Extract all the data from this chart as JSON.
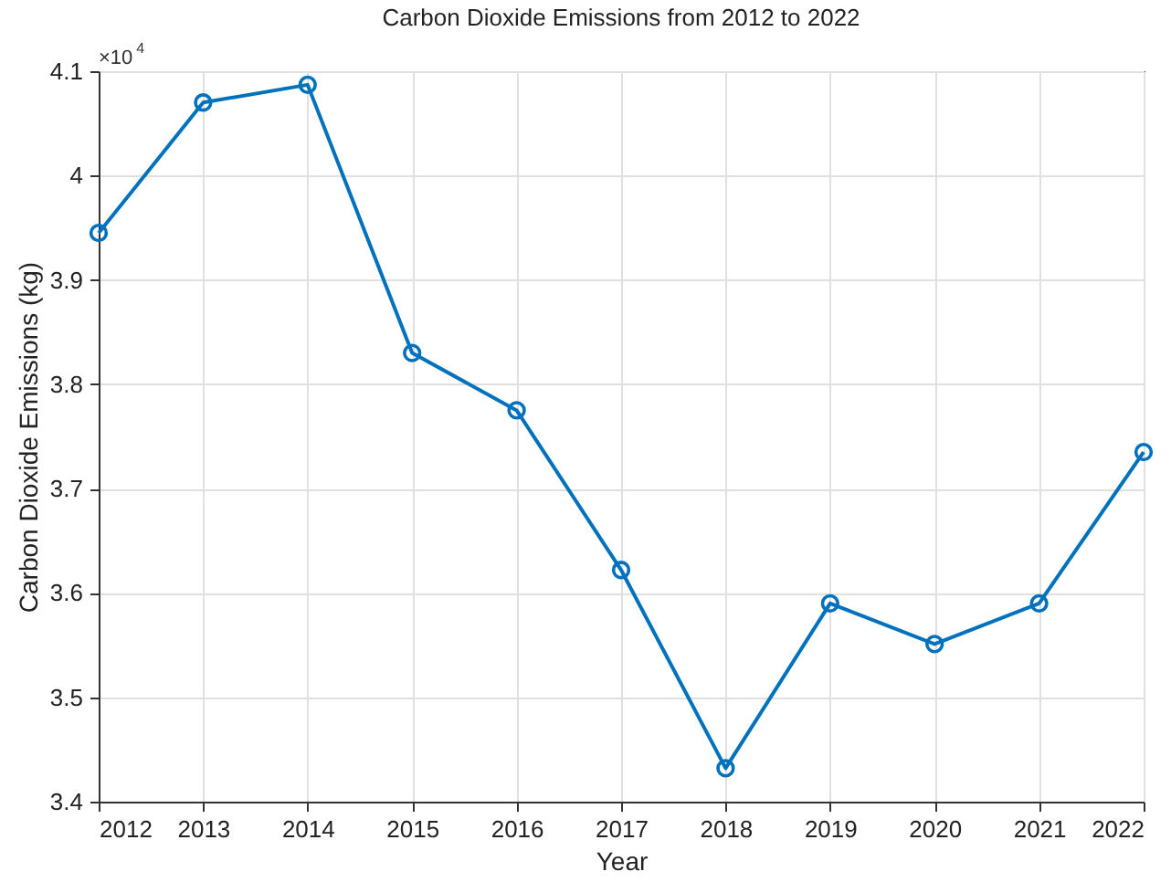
{
  "chart_data": {
    "type": "line",
    "title": "Carbon Dioxide Emissions from 2012 to 2022",
    "xlabel": "Year",
    "ylabel": "Carbon Dioxide Emissions (kg)",
    "x": [
      2012,
      2013,
      2014,
      2015,
      2016,
      2017,
      2018,
      2019,
      2020,
      2021,
      2022
    ],
    "series": [
      {
        "color": "#0072bd",
        "values": [
          3.945,
          4.07,
          4.087,
          3.83,
          3.775,
          3.622,
          3.432,
          3.59,
          3.551,
          3.59,
          3.735
        ]
      }
    ],
    "xlim": [
      2012,
      2022
    ],
    "xticks": [
      2012,
      2013,
      2014,
      2015,
      2016,
      2017,
      2018,
      2019,
      2020,
      2021,
      2022
    ],
    "ylim": [
      3.4,
      4.1
    ],
    "yticks": [
      3.4,
      3.5,
      3.6,
      3.7,
      3.8,
      3.9,
      4,
      4.1
    ],
    "annotations": [
      "×10$^{4}$"
    ],
    "grid": true,
    "marker": "circle",
    "line_style": "solid"
  }
}
